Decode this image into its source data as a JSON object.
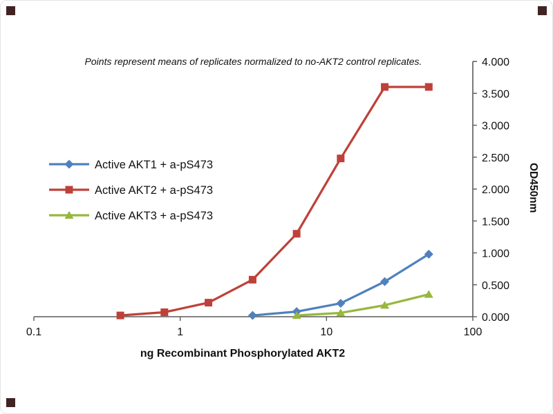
{
  "page": {
    "background": "#ffffff",
    "frame_border_color": "#e4e4e4"
  },
  "watermark": {
    "corner_color": "#402424",
    "corners": [
      "top-left",
      "top-right",
      "bottom-left"
    ]
  },
  "chart_data": {
    "type": "line",
    "title": "Points represent means of replicates normalized to no-AKT2 control replicates.",
    "xlabel": "ng Recombinant  Phosphorylated  AKT2",
    "ylabel": "OD450nm",
    "x_scale": "log",
    "xlim": [
      0.1,
      100
    ],
    "ylim": [
      0.0,
      4.0
    ],
    "x_tick_values": [
      0.1,
      1,
      10,
      100
    ],
    "x_tick_labels": [
      "0.1",
      "1",
      "10",
      "100"
    ],
    "y_tick_values": [
      0,
      0.5,
      1,
      1.5,
      2,
      2.5,
      3,
      3.5,
      4
    ],
    "y_tick_labels": [
      "0.000",
      "0.500",
      "1.000",
      "1.500",
      "2.000",
      "2.500",
      "3.000",
      "3.500",
      "4.000"
    ],
    "y_axis_side": "right",
    "grid": false,
    "axis_color": "#595959",
    "legend_position": "middle-left",
    "series": [
      {
        "name": "Active AKT1 + a-pS473",
        "color": "#4F81BD",
        "marker": "diamond",
        "points": [
          [
            3.125,
            0.02
          ],
          [
            6.25,
            0.08
          ],
          [
            12.5,
            0.21
          ],
          [
            25,
            0.55
          ],
          [
            50,
            0.98
          ]
        ]
      },
      {
        "name": "Active AKT2 + a-pS473",
        "color": "#BE4139",
        "marker": "square",
        "points": [
          [
            0.39,
            0.02
          ],
          [
            0.78,
            0.07
          ],
          [
            1.56,
            0.22
          ],
          [
            3.125,
            0.58
          ],
          [
            6.25,
            1.3
          ],
          [
            12.5,
            2.48
          ],
          [
            25,
            3.6
          ],
          [
            50,
            3.6
          ]
        ]
      },
      {
        "name": "Active AKT3 + a-pS473",
        "color": "#97B73F",
        "marker": "triangle",
        "points": [
          [
            6.25,
            0.02
          ],
          [
            12.5,
            0.06
          ],
          [
            25,
            0.18
          ],
          [
            50,
            0.35
          ]
        ]
      }
    ]
  }
}
